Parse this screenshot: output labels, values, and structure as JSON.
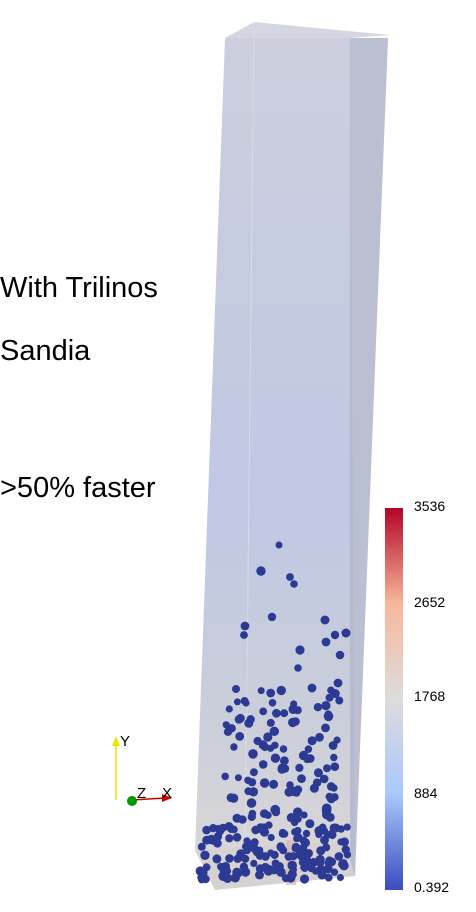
{
  "captions": {
    "line1": "With Trilinos",
    "line2": "Sandia",
    "line3": ">50%  faster"
  },
  "colorbar": {
    "ticks": [
      "3536",
      "2652",
      "1768",
      "884",
      "0.392"
    ],
    "colors": [
      "#b40426",
      "#f7b89c",
      "#dddcdc",
      "#aac7fd",
      "#3b4cc0"
    ]
  },
  "axes": {
    "y_label": "Y",
    "z_label": "Z",
    "x_label": "X",
    "y_color": "#e6e600",
    "x_color": "#cc0000",
    "z_color": "#009900"
  },
  "particle_color": "#2d3a94",
  "box_color": "#c5cad8"
}
